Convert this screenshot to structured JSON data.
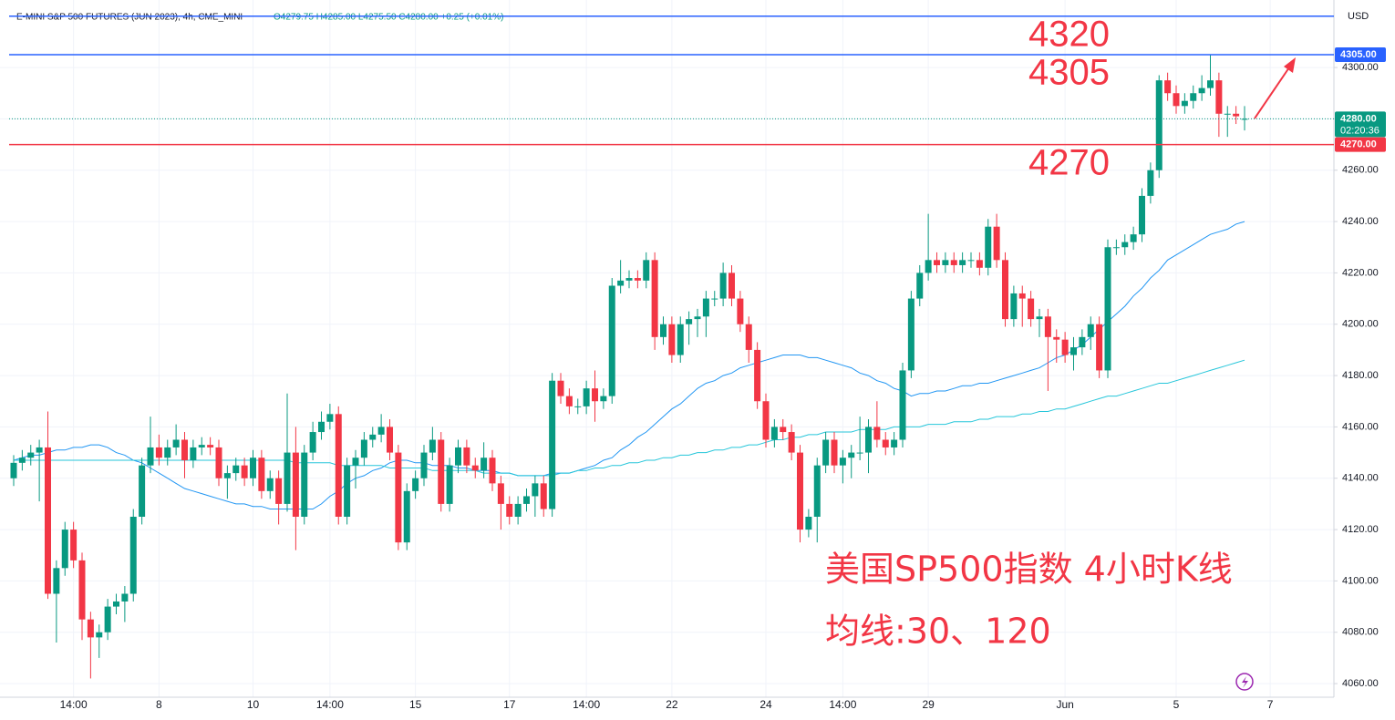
{
  "header": {
    "symbol": "E-MINI S&P 500 FUTURES (JUN 2023), 4h, CME_MINI",
    "ohlc": "O4279.75 H4285.00 L4275.50 C4280.00 +0.25 (+0.01%)"
  },
  "chart_data": {
    "type": "candlestick",
    "currency": "USD",
    "colors": {
      "up": "#089981",
      "down": "#f23645"
    },
    "ylim": [
      4054.7,
      4326.3
    ],
    "yticks": [
      {
        "value": 4060,
        "label": "4060.00"
      },
      {
        "value": 4080,
        "label": "4080.00"
      },
      {
        "value": 4100,
        "label": "4100.00"
      },
      {
        "value": 4120,
        "label": "4120.00"
      },
      {
        "value": 4140,
        "label": "4140.00"
      },
      {
        "value": 4160,
        "label": "4160.00"
      },
      {
        "value": 4180,
        "label": "4180.00"
      },
      {
        "value": 4200,
        "label": "4200.00"
      },
      {
        "value": 4220,
        "label": "4220.00"
      },
      {
        "value": 4240,
        "label": "4240.00"
      },
      {
        "value": 4260,
        "label": "4260.00"
      },
      {
        "value": 4280,
        "label": "4280.00"
      },
      {
        "value": 4300,
        "label": "4300.00"
      }
    ],
    "grid": true,
    "categories": [
      null,
      null,
      null,
      null,
      null,
      null,
      null,
      "14:00",
      null,
      null,
      null,
      null,
      null,
      null,
      null,
      null,
      null,
      "8",
      null,
      null,
      null,
      null,
      null,
      null,
      null,
      null,
      null,
      null,
      "10",
      null,
      null,
      null,
      null,
      null,
      null,
      null,
      null,
      "14:00",
      null,
      null,
      null,
      null,
      null,
      null,
      null,
      null,
      null,
      "15",
      null,
      null,
      null,
      null,
      null,
      null,
      null,
      null,
      null,
      null,
      "17",
      null,
      null,
      null,
      null,
      null,
      null,
      null,
      null,
      "14:00",
      null,
      null,
      null,
      null,
      null,
      null,
      null,
      null,
      null,
      "22",
      null,
      null,
      null,
      null,
      null,
      null,
      null,
      null,
      null,
      null,
      "24",
      null,
      null,
      null,
      null,
      null,
      null,
      null,
      null,
      "14:00",
      null,
      null,
      null,
      null,
      null,
      null,
      null,
      null,
      null,
      "29",
      null,
      null,
      null,
      null,
      null,
      null,
      null,
      null,
      null,
      null,
      null,
      null,
      null,
      null,
      null,
      "Jun",
      null,
      null,
      null,
      null,
      null,
      null,
      null,
      null,
      null,
      null,
      null,
      null,
      "5",
      null,
      null,
      null,
      null,
      null,
      null,
      null,
      null,
      null,
      null,
      "7"
    ],
    "open": [
      4140,
      4146,
      4148,
      4150,
      4152,
      4095,
      4105,
      4120,
      4108,
      4085,
      4078,
      4080,
      4090,
      4092,
      4095,
      4125,
      4145,
      4152,
      4148,
      4152,
      4155,
      4147,
      4152,
      4153,
      4152,
      4140,
      4142,
      4145,
      4140,
      4148,
      4135,
      4140,
      4130,
      4150,
      4125,
      4150,
      4158,
      4162,
      4165,
      4125,
      4145,
      4148,
      4155,
      4157,
      4160,
      4150,
      4115,
      4135,
      4140,
      4150,
      4155,
      4130,
      4145,
      4152,
      4145,
      4143,
      4148,
      4138,
      4130,
      4125,
      4130,
      4133,
      4138,
      4128,
      4178,
      4172,
      4168,
      4168,
      4175,
      4170,
      4172,
      4215,
      4217,
      4218,
      4217,
      4225,
      4195,
      4200,
      4188,
      4200,
      4202,
      4203,
      4210,
      4210,
      4220,
      4210,
      4200,
      4190,
      4170,
      4155,
      4160,
      4158,
      4150,
      4120,
      4125,
      4145,
      4155,
      4145,
      4148,
      4150,
      4150,
      4160,
      4155,
      4152,
      4155,
      4182,
      4210,
      4220,
      4225,
      4223,
      4225,
      4223,
      4225,
      4225,
      4222,
      4238,
      4225,
      4202,
      4212,
      4210,
      4202,
      4203,
      4195,
      4194,
      4188,
      4191,
      4195,
      4200,
      4182,
      4230,
      4230,
      4232,
      4235,
      4250,
      4260,
      4295,
      4290,
      4285,
      4287,
      4290,
      4292,
      4295,
      4282,
      4282,
      4279.75,
      null,
      null,
      null
    ],
    "high": [
      4149,
      4151,
      4153,
      4155,
      4166,
      4108,
      4123,
      4123,
      4111,
      4088,
      4083,
      4093,
      4095,
      4098,
      4128,
      4148,
      4164,
      4157,
      4155,
      4161,
      4158,
      4155,
      4156,
      4156,
      4155,
      4145,
      4148,
      4148,
      4151,
      4151,
      4143,
      4143,
      4173,
      4160,
      4153,
      4162,
      4166,
      4169,
      4168,
      4148,
      4151,
      4158,
      4160,
      4165,
      4163,
      4153,
      4138,
      4143,
      4153,
      4160,
      4158,
      4148,
      4155,
      4155,
      4148,
      4154,
      4151,
      4141,
      4133,
      4133,
      4136,
      4141,
      4141,
      4181,
      4181,
      4175,
      4171,
      4178,
      4182,
      4175,
      4218,
      4225,
      4221,
      4221,
      4228,
      4228,
      4203,
      4203,
      4203,
      4205,
      4206,
      4213,
      4213,
      4224,
      4223,
      4213,
      4203,
      4193,
      4173,
      4163,
      4163,
      4161,
      4153,
      4128,
      4148,
      4158,
      4158,
      4151,
      4153,
      4164,
      4163,
      4170,
      4158,
      4158,
      4185,
      4213,
      4223,
      4243,
      4228,
      4228,
      4228,
      4228,
      4228,
      4228,
      4241,
      4243,
      4228,
      4215,
      4215,
      4213,
      4206,
      4206,
      4198,
      4197,
      4195,
      4198,
      4203,
      4203,
      4233,
      4233,
      4235,
      4238,
      4253,
      4263,
      4297,
      4298,
      4293,
      4290,
      4293,
      4297,
      4305,
      4298,
      4285,
      4285,
      4285,
      null,
      null,
      null
    ],
    "low": [
      4137,
      4143,
      4145,
      4131,
      4093,
      4076,
      4102,
      4105,
      4077,
      4062,
      4070,
      4077,
      4087,
      4084,
      4092,
      4122,
      4142,
      4145,
      4145,
      4149,
      4140,
      4144,
      4149,
      4149,
      4137,
      4132,
      4139,
      4137,
      4137,
      4132,
      4132,
      4122,
      4127,
      4112,
      4122,
      4147,
      4155,
      4159,
      4122,
      4122,
      4136,
      4145,
      4152,
      4154,
      4147,
      4112,
      4112,
      4132,
      4137,
      4147,
      4127,
      4127,
      4142,
      4142,
      4140,
      4140,
      4135,
      4120,
      4122,
      4122,
      4127,
      4125,
      4125,
      4125,
      4169,
      4165,
      4165,
      4165,
      4162,
      4167,
      4169,
      4212,
      4214,
      4214,
      4214,
      4190,
      4192,
      4185,
      4185,
      4192,
      4195,
      4195,
      4207,
      4207,
      4207,
      4197,
      4185,
      4167,
      4152,
      4152,
      4155,
      4147,
      4115,
      4117,
      4115,
      4142,
      4142,
      4138,
      4140,
      4147,
      4142,
      4152,
      4149,
      4149,
      4152,
      4179,
      4207,
      4217,
      4220,
      4220,
      4220,
      4220,
      4222,
      4219,
      4219,
      4222,
      4199,
      4199,
      4199,
      4199,
      4195,
      4174,
      4185,
      4185,
      4182,
      4188,
      4190,
      4179,
      4179,
      4227,
      4227,
      4229,
      4232,
      4247,
      4257,
      4287,
      4282,
      4282,
      4284,
      4287,
      4289,
      4273,
      4273,
      4278,
      4275.5,
      null,
      null,
      null
    ],
    "close": [
      4146,
      4148,
      4150,
      4152,
      4095,
      4105,
      4120,
      4108,
      4085,
      4078,
      4080,
      4090,
      4092,
      4095,
      4125,
      4145,
      4152,
      4148,
      4152,
      4155,
      4147,
      4152,
      4153,
      4152,
      4140,
      4142,
      4145,
      4140,
      4148,
      4135,
      4140,
      4130,
      4150,
      4125,
      4150,
      4158,
      4162,
      4165,
      4125,
      4145,
      4148,
      4155,
      4157,
      4160,
      4150,
      4115,
      4135,
      4140,
      4150,
      4155,
      4130,
      4145,
      4152,
      4145,
      4143,
      4148,
      4138,
      4130,
      4125,
      4130,
      4133,
      4138,
      4128,
      4178,
      4172,
      4168,
      4168,
      4175,
      4170,
      4172,
      4215,
      4217,
      4218,
      4217,
      4225,
      4195,
      4200,
      4188,
      4200,
      4202,
      4203,
      4210,
      4210,
      4220,
      4210,
      4200,
      4190,
      4170,
      4155,
      4160,
      4158,
      4150,
      4120,
      4125,
      4145,
      4155,
      4145,
      4148,
      4150,
      4150,
      4160,
      4155,
      4152,
      4155,
      4182,
      4210,
      4220,
      4225,
      4223,
      4225,
      4223,
      4225,
      4225,
      4222,
      4238,
      4225,
      4202,
      4212,
      4210,
      4202,
      4203,
      4195,
      4194,
      4188,
      4191,
      4195,
      4200,
      4182,
      4230,
      4230,
      4232,
      4235,
      4250,
      4260,
      4295,
      4290,
      4285,
      4287,
      4290,
      4292,
      4295,
      4282,
      4282,
      4281,
      4280,
      null,
      null,
      null
    ],
    "moving_averages": [
      {
        "color": "#2196f3",
        "values": [
          4147,
          4148,
          4149,
          4149,
          4150,
          4151,
          4151,
          4152,
          4152,
          4153,
          4153,
          4152,
          4150,
          4149,
          4147,
          4146,
          4144,
          4142,
          4140,
          4138,
          4136,
          4135,
          4134,
          4133,
          4132,
          4131,
          4130,
          4130,
          4129,
          4129,
          4128,
          4128,
          4128,
          4128,
          4128,
          4128,
          4130,
          4133,
          4135,
          4138,
          4140,
          4141,
          4143,
          4144,
          4146,
          4147,
          4147,
          4146,
          4146,
          4145,
          4145,
          4145,
          4144,
          4144,
          4143,
          4143,
          4143,
          4142,
          4142,
          4141,
          4141,
          4141,
          4141,
          4142,
          4142,
          4142,
          4143,
          4144,
          4145,
          4147,
          4148,
          4151,
          4153,
          4156,
          4158,
          4161,
          4164,
          4167,
          4169,
          4172,
          4175,
          4177,
          4178,
          4180,
          4181,
          4183,
          4184,
          4185,
          4186,
          4187,
          4188,
          4188,
          4188,
          4187,
          4187,
          4186,
          4185,
          4184,
          4183,
          4181,
          4180,
          4178,
          4177,
          4175,
          4174,
          4172,
          4173,
          4173,
          4174,
          4174,
          4175,
          4176,
          4176,
          4177,
          4177,
          4178,
          4179,
          4180,
          4181,
          4182,
          4183,
          4185,
          4187,
          4188,
          4190,
          4192,
          4195,
          4198,
          4201,
          4204,
          4207,
          4211,
          4214,
          4218,
          4221,
          4225,
          4227,
          4229,
          4231,
          4233,
          4235,
          4236,
          4237,
          4239,
          4240,
          null,
          null,
          null
        ]
      },
      {
        "color": "#26c6da",
        "values": [
          4147,
          4147,
          4147,
          4147,
          4147,
          4147,
          4147,
          4147,
          4147,
          4147,
          4147,
          4147,
          4147,
          4147,
          4147,
          4147,
          4147,
          4147,
          4147,
          4147,
          4147,
          4147,
          4147,
          4147,
          4147,
          4147,
          4147,
          4147,
          4147,
          4147,
          4147,
          4147,
          4147,
          4146,
          4146,
          4146,
          4146,
          4146,
          4145,
          4145,
          4145,
          4145,
          4145,
          4145,
          4144,
          4144,
          4144,
          4144,
          4144,
          4143,
          4143,
          4143,
          4143,
          4143,
          4143,
          4142,
          4142,
          4142,
          4142,
          4141,
          4141,
          4141,
          4141,
          4141,
          4142,
          4142,
          4143,
          4143,
          4144,
          4144,
          4145,
          4145,
          4146,
          4146,
          4147,
          4147,
          4148,
          4148,
          4149,
          4149,
          4150,
          4150,
          4151,
          4151,
          4152,
          4152,
          4153,
          4153,
          4154,
          4155,
          4155,
          4156,
          4156,
          4157,
          4157,
          4158,
          4158,
          4158,
          4158,
          4159,
          4159,
          4159,
          4159,
          4160,
          4160,
          4160,
          4160,
          4161,
          4161,
          4161,
          4162,
          4162,
          4162,
          4163,
          4163,
          4164,
          4164,
          4164,
          4165,
          4165,
          4166,
          4166,
          4167,
          4167,
          4168,
          4169,
          4170,
          4171,
          4172,
          4172,
          4173,
          4174,
          4175,
          4176,
          4177,
          4177,
          4178,
          4179,
          4180,
          4181,
          4182,
          4183,
          4184,
          4185,
          4186,
          null,
          null,
          null
        ]
      }
    ],
    "lines": [
      {
        "value": 4320,
        "color": "#2962ff"
      },
      {
        "value": 4305,
        "label": "4305.00",
        "color": "#2962ff"
      },
      {
        "value": 4270,
        "label": "4270.00",
        "color": "#f23645"
      }
    ],
    "last_price": {
      "value": 4280,
      "label": "4280.00",
      "countdown": "02:20:36",
      "color": "#089981"
    },
    "annotations": [
      "4320",
      "4305",
      "4270",
      "美国SP500指数 4小时K线",
      "均线:30、120"
    ]
  }
}
